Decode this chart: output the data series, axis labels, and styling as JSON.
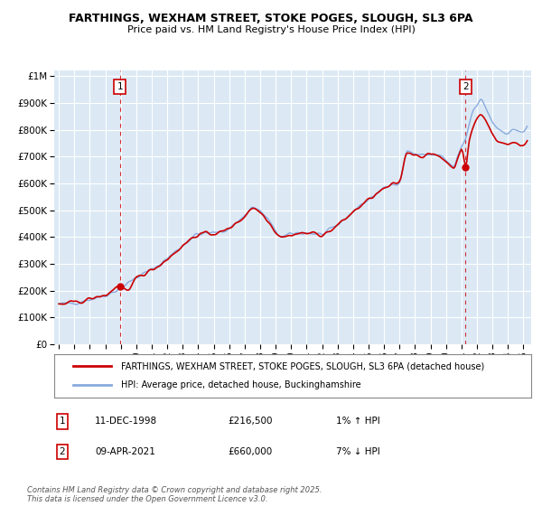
{
  "title": "FARTHINGS, WEXHAM STREET, STOKE POGES, SLOUGH, SL3 6PA",
  "subtitle": "Price paid vs. HM Land Registry's House Price Index (HPI)",
  "ylabel_ticks": [
    "£0",
    "£100K",
    "£200K",
    "£300K",
    "£400K",
    "£500K",
    "£600K",
    "£700K",
    "£800K",
    "£900K",
    "£1M"
  ],
  "ytick_values": [
    0,
    100000,
    200000,
    300000,
    400000,
    500000,
    600000,
    700000,
    800000,
    900000,
    1000000
  ],
  "ylim": [
    0,
    1020000
  ],
  "xlim_start": 1994.7,
  "xlim_end": 2025.5,
  "sale1_x": 1998.94,
  "sale1_y": 216500,
  "sale1_label": "1",
  "sale2_x": 2021.27,
  "sale2_y": 660000,
  "sale2_label": "2",
  "line_color_property": "#cc0000",
  "line_color_hpi": "#88aadd",
  "plot_bg_color": "#dce9f5",
  "background_color": "#ffffff",
  "grid_color": "#ffffff",
  "legend_entries": [
    "FARTHINGS, WEXHAM STREET, STOKE POGES, SLOUGH, SL3 6PA (detached house)",
    "HPI: Average price, detached house, Buckinghamshire"
  ],
  "annotation1_date": "11-DEC-1998",
  "annotation1_price": "£216,500",
  "annotation1_hpi": "1% ↑ HPI",
  "annotation2_date": "09-APR-2021",
  "annotation2_price": "£660,000",
  "annotation2_hpi": "7% ↓ HPI",
  "footer": "Contains HM Land Registry data © Crown copyright and database right 2025.\nThis data is licensed under the Open Government Licence v3.0."
}
